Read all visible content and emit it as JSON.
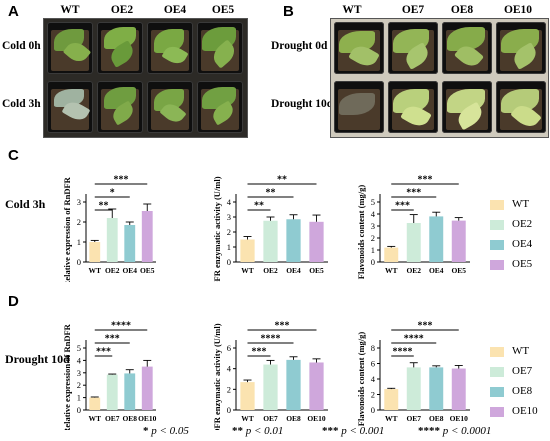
{
  "panels": {
    "A": {
      "label": "A",
      "columns": [
        "WT",
        "OE2",
        "OE4",
        "OE5"
      ],
      "rows": [
        "Cold 0h",
        "Cold 3h"
      ]
    },
    "B": {
      "label": "B",
      "columns": [
        "WT",
        "OE7",
        "OE8",
        "OE10"
      ],
      "rows": [
        "Drought 0d",
        "Drought 10d"
      ]
    },
    "C": {
      "label": "C",
      "row_label": "Cold 3h"
    },
    "D": {
      "label": "D",
      "row_label": "Drought 10d"
    }
  },
  "colors": {
    "WT": "#fbe3b0",
    "G1": "#cdebd9",
    "G2": "#8fcbd1",
    "G3": "#cfa7dc"
  },
  "legends": {
    "C": [
      {
        "label": "WT",
        "color": "#fbe3b0"
      },
      {
        "label": "OE2",
        "color": "#cdebd9"
      },
      {
        "label": "OE4",
        "color": "#8fcbd1"
      },
      {
        "label": "OE5",
        "color": "#cfa7dc"
      }
    ],
    "D": [
      {
        "label": "WT",
        "color": "#fbe3b0"
      },
      {
        "label": "OE7",
        "color": "#cdebd9"
      },
      {
        "label": "OE8",
        "color": "#8fcbd1"
      },
      {
        "label": "OE10",
        "color": "#cfa7dc"
      }
    ]
  },
  "significance_key": [
    {
      "stars": "*",
      "text": "p < 0.05"
    },
    {
      "stars": "**",
      "text": "p < 0.01"
    },
    {
      "stars": "***",
      "text": "p < 0.001"
    },
    {
      "stars": "****",
      "text": "p < 0.0001"
    }
  ],
  "chart_data": [
    {
      "id": "C1",
      "type": "bar",
      "categories": [
        "WT",
        "OE2",
        "OE4",
        "OE5"
      ],
      "values": [
        1.0,
        2.2,
        1.85,
        2.55
      ],
      "errors": [
        0.08,
        0.45,
        0.15,
        0.35
      ],
      "ylabel": "Relative expression of RnDFR",
      "ylim": [
        0,
        3
      ],
      "yticks": [
        0,
        1,
        2,
        3
      ],
      "brackets": [
        {
          "to": 1,
          "text": "**"
        },
        {
          "to": 2,
          "text": "*"
        },
        {
          "to": 3,
          "text": "***"
        }
      ]
    },
    {
      "id": "C2",
      "type": "bar",
      "categories": [
        "WT",
        "OE2",
        "OE4",
        "OE5"
      ],
      "values": [
        1.5,
        2.75,
        2.85,
        2.68
      ],
      "errors": [
        0.2,
        0.25,
        0.3,
        0.45
      ],
      "ylabel": "DFR enzymatic activity (U/ml)",
      "ylim": [
        0,
        4
      ],
      "yticks": [
        0,
        1,
        2,
        3,
        4
      ],
      "brackets": [
        {
          "to": 1,
          "text": "**"
        },
        {
          "to": 2,
          "text": "**"
        },
        {
          "to": 3,
          "text": "**"
        }
      ]
    },
    {
      "id": "C3",
      "type": "bar",
      "categories": [
        "WT",
        "OE2",
        "OE4",
        "OE5"
      ],
      "values": [
        1.2,
        3.25,
        3.8,
        3.45
      ],
      "errors": [
        0.1,
        0.7,
        0.35,
        0.25
      ],
      "ylabel": "Flavonoids content (mg/g)",
      "ylim": [
        0,
        5
      ],
      "yticks": [
        0,
        1,
        2,
        3,
        4,
        5
      ],
      "brackets": [
        {
          "to": 1,
          "text": "***"
        },
        {
          "to": 2,
          "text": "***"
        },
        {
          "to": 3,
          "text": "***"
        }
      ]
    },
    {
      "id": "D1",
      "type": "bar",
      "categories": [
        "WT",
        "OE7",
        "OE8",
        "OE10"
      ],
      "values": [
        1.0,
        2.85,
        2.95,
        3.5
      ],
      "errors": [
        0.05,
        0.05,
        0.3,
        0.5
      ],
      "ylabel": "Relative expression of RnDFR",
      "ylim": [
        0,
        5
      ],
      "yticks": [
        0,
        1,
        2,
        3,
        4,
        5
      ],
      "brackets": [
        {
          "to": 1,
          "text": "***"
        },
        {
          "to": 2,
          "text": "***"
        },
        {
          "to": 3,
          "text": "****"
        }
      ]
    },
    {
      "id": "D2",
      "type": "bar",
      "categories": [
        "WT",
        "OE7",
        "OE8",
        "OE10"
      ],
      "values": [
        2.7,
        4.4,
        4.85,
        4.6
      ],
      "errors": [
        0.2,
        0.4,
        0.3,
        0.35
      ],
      "ylabel": "DFR enzymatic activity (U/ml)",
      "ylim": [
        0,
        6
      ],
      "yticks": [
        0,
        2,
        4,
        6
      ],
      "brackets": [
        {
          "to": 1,
          "text": "***"
        },
        {
          "to": 2,
          "text": "****"
        },
        {
          "to": 3,
          "text": "***"
        }
      ]
    },
    {
      "id": "D3",
      "type": "bar",
      "categories": [
        "WT",
        "OE7",
        "OE8",
        "OE10"
      ],
      "values": [
        2.7,
        5.5,
        5.5,
        5.35
      ],
      "errors": [
        0.1,
        0.6,
        0.2,
        0.4
      ],
      "ylabel": "Flavonoids content (mg/g)",
      "ylim": [
        0,
        8
      ],
      "yticks": [
        0,
        2,
        4,
        6,
        8
      ],
      "brackets": [
        {
          "to": 1,
          "text": "****"
        },
        {
          "to": 2,
          "text": "****"
        },
        {
          "to": 3,
          "text": "***"
        }
      ]
    }
  ]
}
